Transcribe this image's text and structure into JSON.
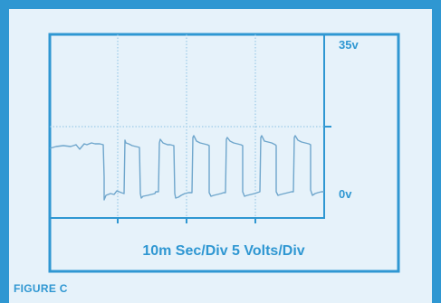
{
  "figure": {
    "caption": "FIGURE C"
  },
  "chart_data": {
    "type": "line",
    "title": "",
    "scale_label": "10m Sec/Div 5 Volts/Div",
    "y_top_label": "35v",
    "y_zero_label": "0v",
    "x_divisions": 4,
    "y_reference": "midline",
    "grid": "dotted",
    "series": [
      {
        "waveform": "rectangular pulses",
        "pulse_count": 7,
        "high_level_v": 20,
        "low_level_v": 0
      }
    ]
  },
  "colors": {
    "accent": "#2f97d2",
    "background": "#e6f2fa",
    "trace": "#6fa6cc",
    "grid": "#8cc3e4"
  }
}
